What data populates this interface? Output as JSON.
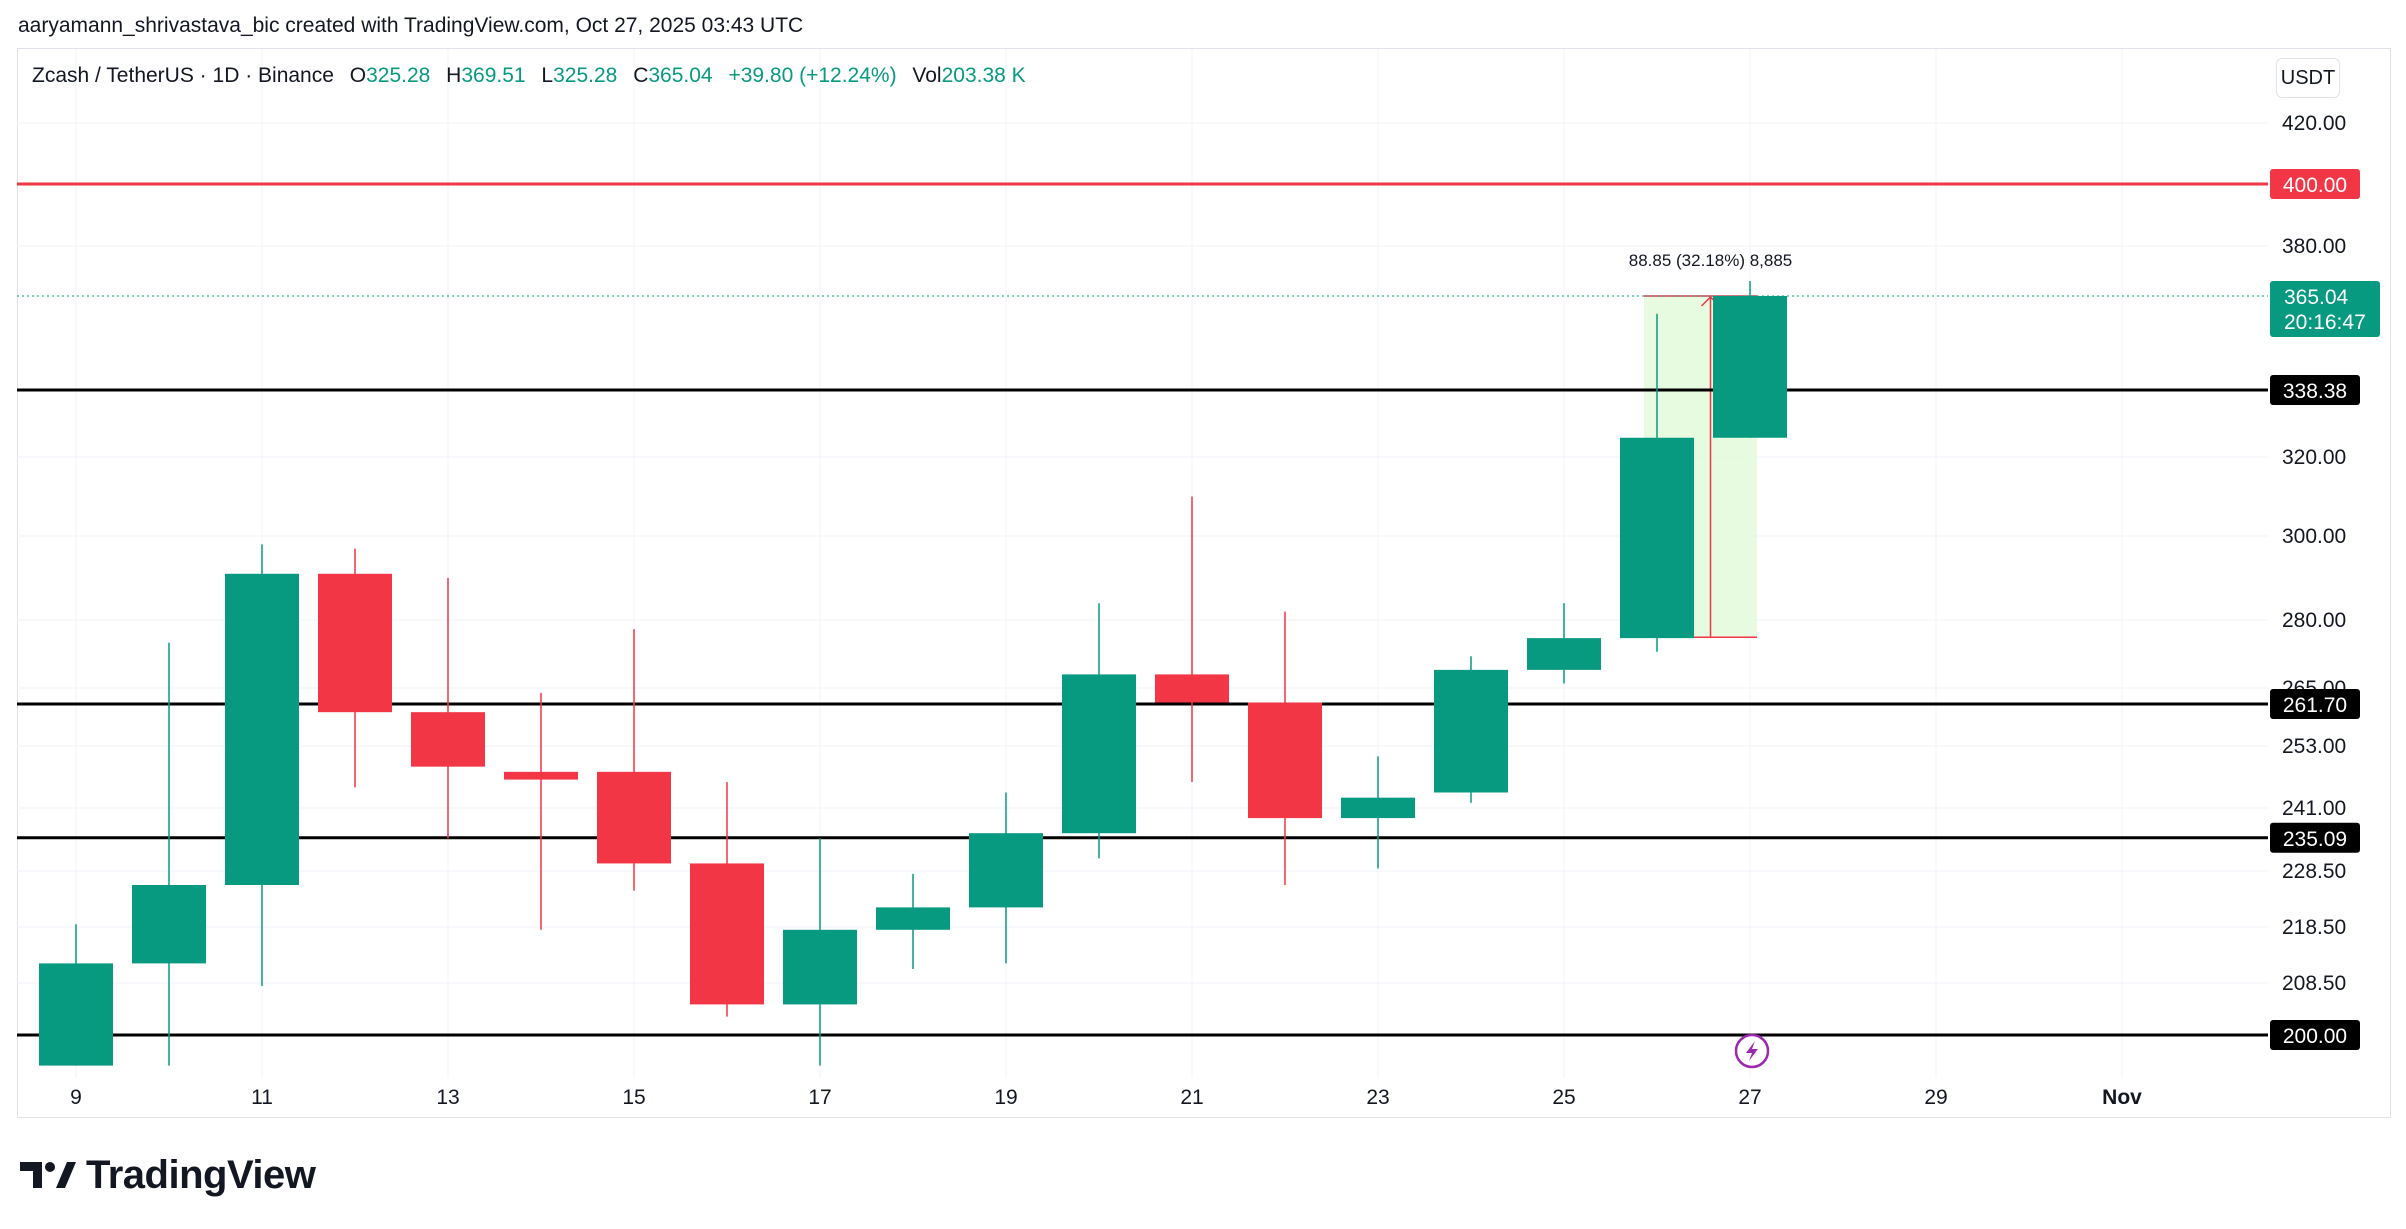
{
  "header": {
    "attribution": "aaryamann_shrivastava_bic created with TradingView.com, Oct 27, 2025 03:43 UTC"
  },
  "legend": {
    "symbol": "Zcash / TetherUS · 1D · Binance",
    "o_label": "O",
    "o_value": "325.28",
    "h_label": "H",
    "h_value": "369.51",
    "l_label": "L",
    "l_value": "325.28",
    "c_label": "C",
    "c_value": "365.04",
    "change": "+39.80 (+12.24%)",
    "vol_label": "Vol",
    "vol_value": "203.38 K"
  },
  "toolbar": {
    "currency": "USDT"
  },
  "brand": {
    "name": "TradingView",
    "logo_icon": "tradingview-logo-icon"
  },
  "colors": {
    "up": "#089981",
    "down": "#f23645",
    "resistance": "#f23645",
    "level": "#000000",
    "measure_fill": "#e3fbdc",
    "measure_line": "#f23645",
    "lightning": "#9c27b0"
  },
  "chart_data": {
    "type": "candlestick",
    "title": "Zcash / TetherUS · 1D · Binance",
    "x_ticks": [
      "9",
      "11",
      "13",
      "15",
      "17",
      "19",
      "21",
      "23",
      "25",
      "27",
      "29",
      "Nov"
    ],
    "y_ticks": [
      "420.00",
      "380.00",
      "320.00",
      "300.00",
      "280.00",
      "265.00",
      "253.00",
      "241.00",
      "228.50",
      "218.50",
      "208.50",
      "200.00"
    ],
    "candles": [
      {
        "date": "2025-10-09",
        "open": 195,
        "high": 219,
        "low": 195,
        "close": 212
      },
      {
        "date": "2025-10-10",
        "open": 212,
        "high": 275,
        "low": 195,
        "close": 226
      },
      {
        "date": "2025-10-11",
        "open": 226,
        "high": 298,
        "low": 208,
        "close": 291
      },
      {
        "date": "2025-10-12",
        "open": 291,
        "high": 297,
        "low": 245,
        "close": 260
      },
      {
        "date": "2025-10-13",
        "open": 260,
        "high": 290,
        "low": 235,
        "close": 249
      },
      {
        "date": "2025-10-14",
        "open": 248,
        "high": 264,
        "low": 218,
        "close": 246.5
      },
      {
        "date": "2025-10-15",
        "open": 248,
        "high": 278,
        "low": 225,
        "close": 230
      },
      {
        "date": "2025-10-16",
        "open": 230,
        "high": 246,
        "low": 203,
        "close": 205
      },
      {
        "date": "2025-10-17",
        "open": 205,
        "high": 235,
        "low": 195,
        "close": 218
      },
      {
        "date": "2025-10-18",
        "open": 218,
        "high": 228,
        "low": 211,
        "close": 222
      },
      {
        "date": "2025-10-19",
        "open": 222,
        "high": 244,
        "low": 212,
        "close": 236
      },
      {
        "date": "2025-10-20",
        "open": 236,
        "high": 284,
        "low": 231,
        "close": 268
      },
      {
        "date": "2025-10-21",
        "open": 268,
        "high": 310,
        "low": 246,
        "close": 262
      },
      {
        "date": "2025-10-22",
        "open": 262,
        "high": 282,
        "low": 226,
        "close": 239
      },
      {
        "date": "2025-10-23",
        "open": 239,
        "high": 251,
        "low": 229,
        "close": 243
      },
      {
        "date": "2025-10-24",
        "open": 244,
        "high": 272,
        "low": 242,
        "close": 269
      },
      {
        "date": "2025-10-25",
        "open": 269,
        "high": 284,
        "low": 266,
        "close": 276
      },
      {
        "date": "2025-10-26",
        "open": 276,
        "high": 360,
        "low": 273,
        "close": 325.28
      },
      {
        "date": "2025-10-27",
        "open": 325.28,
        "high": 369.51,
        "low": 325.28,
        "close": 365.04
      }
    ],
    "horizontal_levels": [
      {
        "value": 400.0,
        "label": "400.00",
        "color": "#f23645"
      },
      {
        "value": 338.38,
        "label": "338.38",
        "color": "#000000"
      },
      {
        "value": 261.7,
        "label": "261.70",
        "color": "#000000"
      },
      {
        "value": 235.09,
        "label": "235.09",
        "color": "#000000"
      },
      {
        "value": 200.0,
        "label": "200.00",
        "color": "#000000"
      }
    ],
    "last_price": {
      "value": 365.04,
      "label": "365.04",
      "countdown": "20:16:47"
    },
    "measure": {
      "from_date": "2025-10-26",
      "to_date": "2025-10-27",
      "from_price": 276.19,
      "to_price": 365.04,
      "label": "88.85 (32.18%) 8,885"
    }
  }
}
